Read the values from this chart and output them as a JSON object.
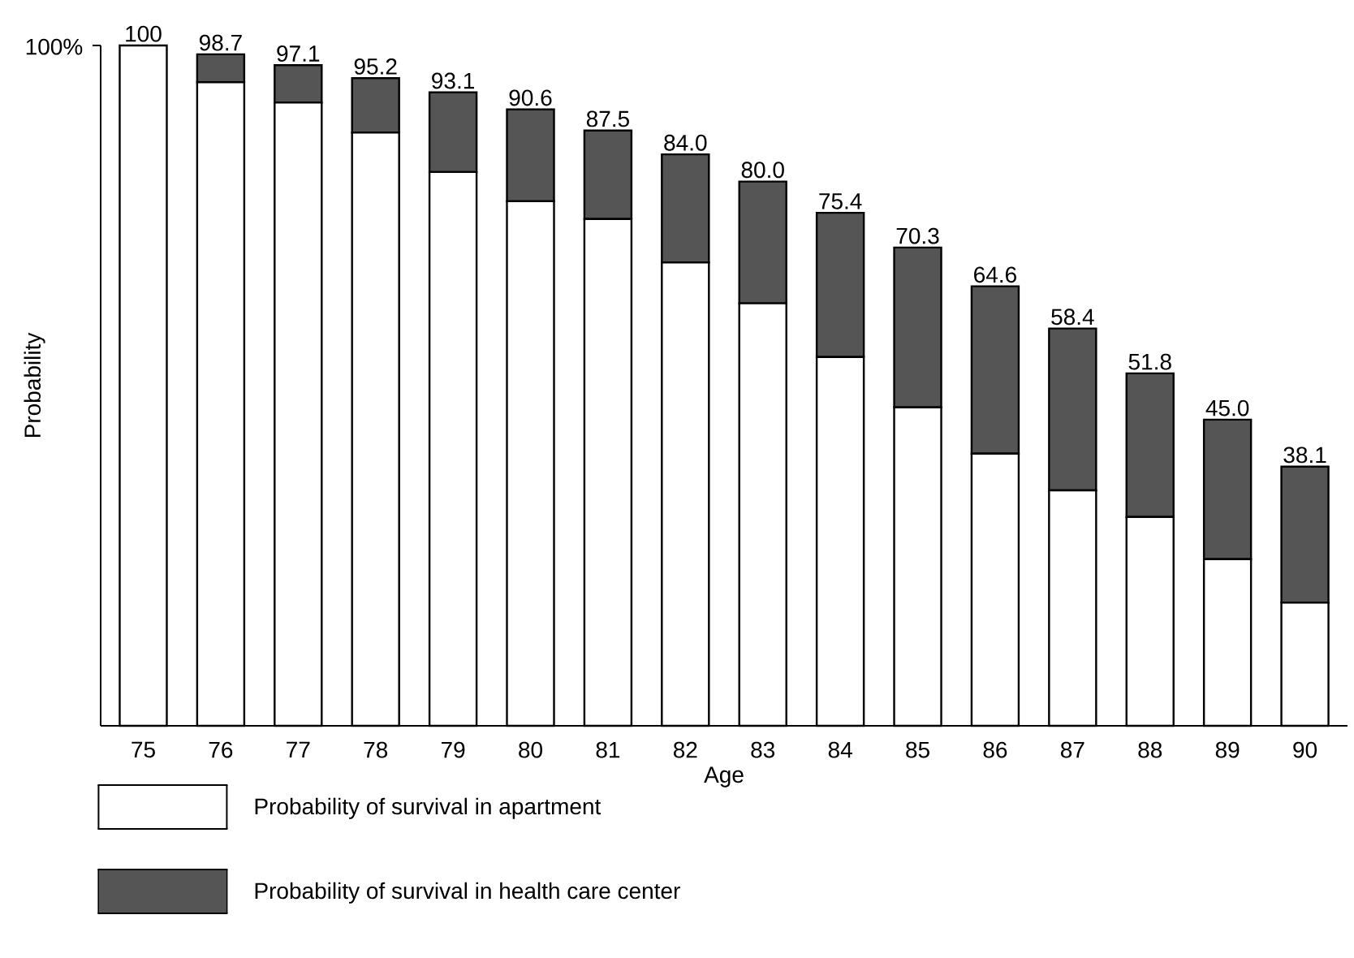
{
  "chart_data": {
    "type": "bar",
    "stacked": true,
    "xlabel": "Age",
    "ylabel": "Probability",
    "categories": [
      "75",
      "76",
      "77",
      "78",
      "79",
      "80",
      "81",
      "82",
      "83",
      "84",
      "85",
      "86",
      "87",
      "88",
      "89",
      "90"
    ],
    "series": [
      {
        "name": "Probability of survival in apartment",
        "color": "#ffffff",
        "values": [
          100,
          94.6,
          91.6,
          87.2,
          81.4,
          77.1,
          74.5,
          68.1,
          62.1,
          54.2,
          46.8,
          40.0,
          34.6,
          30.7,
          24.5,
          18.1
        ]
      },
      {
        "name": "Probability of survival in health care center",
        "color": "#555555",
        "values": [
          0,
          4.1,
          5.5,
          8.0,
          11.7,
          13.5,
          13.0,
          15.9,
          17.9,
          21.2,
          23.5,
          24.6,
          23.8,
          21.1,
          20.5,
          20.0
        ]
      }
    ],
    "totals": [
      "100",
      "98.7",
      "97.1",
      "95.2",
      "93.1",
      "90.6",
      "87.5",
      "84.0",
      "80.0",
      "75.4",
      "70.3",
      "64.6",
      "58.4",
      "51.8",
      "45.0",
      "38.1"
    ],
    "ylim": [
      0,
      100
    ],
    "yticks": [
      {
        "value": 100,
        "label": "100%"
      }
    ],
    "legend": "bottom left"
  }
}
